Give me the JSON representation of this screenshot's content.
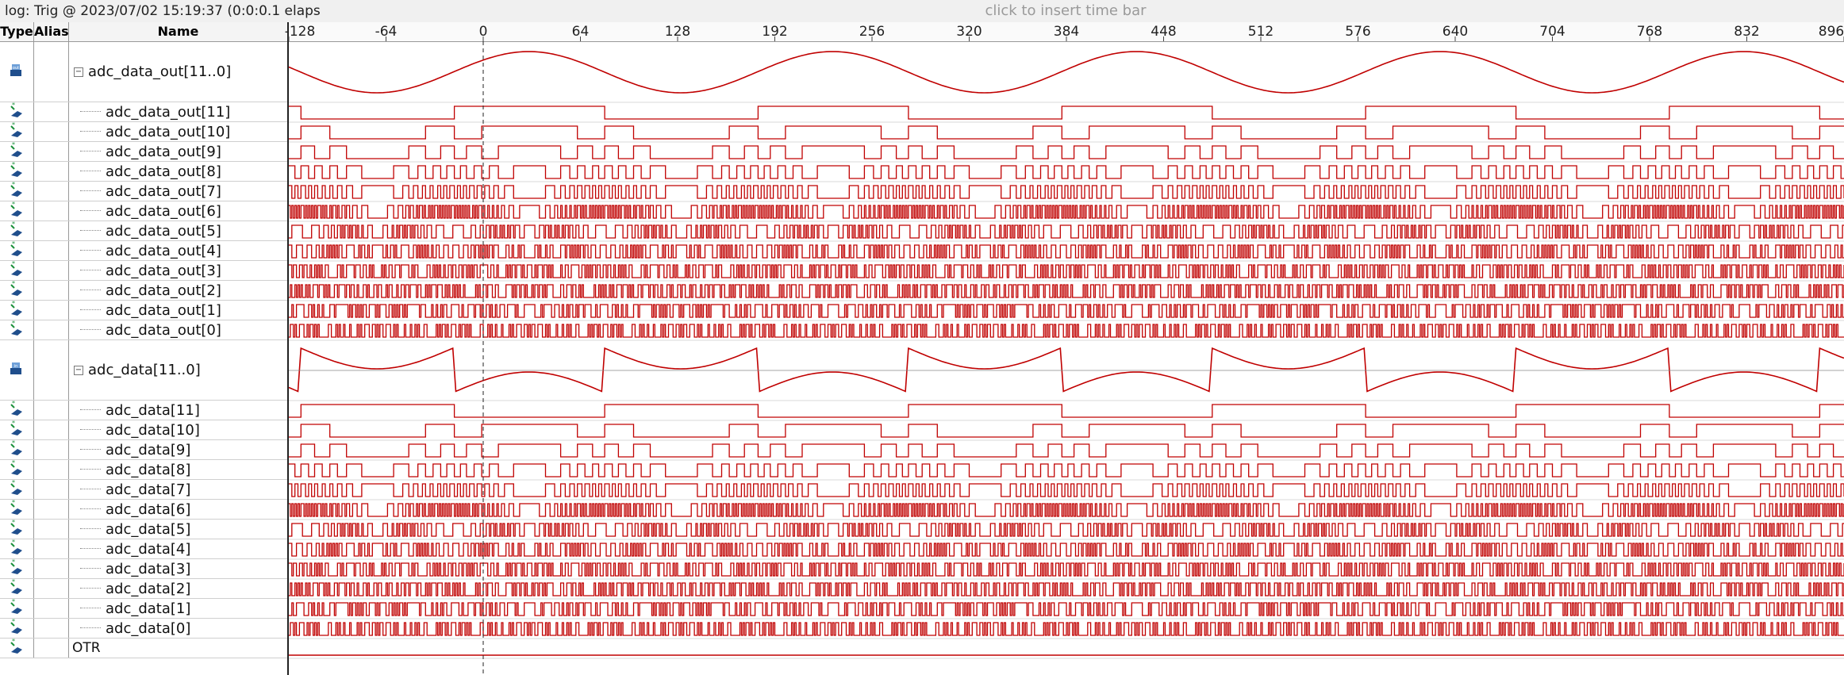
{
  "header": {
    "log_label": "log: Trig @ 2023/07/02 15:19:37 (0:0:0.1 elaps",
    "timebar_hint": "click to insert time bar"
  },
  "columns": {
    "type": "Type",
    "alias": "Alias",
    "name": "Name"
  },
  "time_axis": {
    "ticks": [
      "-128",
      "-64",
      "0",
      "64",
      "128",
      "192",
      "256",
      "320",
      "384",
      "448",
      "512",
      "576",
      "640",
      "704",
      "768",
      "832",
      "896"
    ],
    "range": [
      -128,
      896
    ],
    "trigger_at": 0
  },
  "signals": [
    {
      "name": "adc_data_out[11..0]",
      "kind": "bus",
      "expanded": true,
      "icon": "output-bus-icon",
      "waveform": "analog-sine"
    },
    {
      "name": "adc_data_out[11]",
      "kind": "bit",
      "icon": "node-icon"
    },
    {
      "name": "adc_data_out[10]",
      "kind": "bit",
      "icon": "node-icon"
    },
    {
      "name": "adc_data_out[9]",
      "kind": "bit",
      "icon": "node-icon"
    },
    {
      "name": "adc_data_out[8]",
      "kind": "bit",
      "icon": "node-icon"
    },
    {
      "name": "adc_data_out[7]",
      "kind": "bit",
      "icon": "node-icon"
    },
    {
      "name": "adc_data_out[6]",
      "kind": "bit",
      "icon": "node-icon"
    },
    {
      "name": "adc_data_out[5]",
      "kind": "bit",
      "icon": "node-icon"
    },
    {
      "name": "adc_data_out[4]",
      "kind": "bit",
      "icon": "node-icon"
    },
    {
      "name": "adc_data_out[3]",
      "kind": "bit",
      "icon": "node-icon"
    },
    {
      "name": "adc_data_out[2]",
      "kind": "bit",
      "icon": "node-icon"
    },
    {
      "name": "adc_data_out[1]",
      "kind": "bit",
      "icon": "node-icon"
    },
    {
      "name": "adc_data_out[0]",
      "kind": "bit",
      "icon": "node-icon"
    },
    {
      "name": "adc_data[11..0]",
      "kind": "bus",
      "expanded": true,
      "icon": "input-bus-icon",
      "waveform": "analog-folded"
    },
    {
      "name": "adc_data[11]",
      "kind": "bit",
      "icon": "node-icon"
    },
    {
      "name": "adc_data[10]",
      "kind": "bit",
      "icon": "node-icon"
    },
    {
      "name": "adc_data[9]",
      "kind": "bit",
      "icon": "node-icon"
    },
    {
      "name": "adc_data[8]",
      "kind": "bit",
      "icon": "node-icon"
    },
    {
      "name": "adc_data[7]",
      "kind": "bit",
      "icon": "node-icon"
    },
    {
      "name": "adc_data[6]",
      "kind": "bit",
      "icon": "node-icon"
    },
    {
      "name": "adc_data[5]",
      "kind": "bit",
      "icon": "node-icon"
    },
    {
      "name": "adc_data[4]",
      "kind": "bit",
      "icon": "node-icon"
    },
    {
      "name": "adc_data[3]",
      "kind": "bit",
      "icon": "node-icon"
    },
    {
      "name": "adc_data[2]",
      "kind": "bit",
      "icon": "node-icon"
    },
    {
      "name": "adc_data[1]",
      "kind": "bit",
      "icon": "node-icon"
    },
    {
      "name": "adc_data[0]",
      "kind": "bit",
      "icon": "node-icon"
    },
    {
      "name": "OTR",
      "kind": "bit",
      "icon": "node-icon",
      "waveform": "flat-low"
    }
  ],
  "colors": {
    "waveform": "#c00000",
    "grid": "#d9d9d9",
    "trigger_line": "#222222"
  }
}
